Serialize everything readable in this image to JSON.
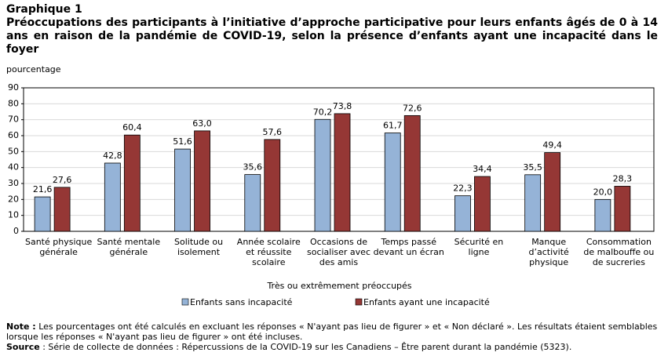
{
  "chart_data": {
    "type": "bar",
    "label": "Graphique 1",
    "title": "Préoccupations des participants à l’initiative d’approche participative pour leurs enfants âgés de 0 à 14 ans en raison de la pandémie de COVID-19, selon la présence d’enfants ayant une incapacité dans le foyer",
    "y_label": "pourcentage",
    "x_label": "Très ou extrêmement préoccupés",
    "categories": [
      "Santé physique générale",
      "Santé mentale générale",
      "Solitude ou isolement",
      "Année scolaire et réussite scolaire",
      "Occasions de socialiser avec des amis",
      "Temps passé devant un écran",
      "Sécurité en ligne",
      "Manque d’activité physique",
      "Consommation de malbouffe ou de sucreries"
    ],
    "series": [
      {
        "name": "Enfants sans incapacité",
        "color": "#95b3d7",
        "values": [
          21.6,
          42.8,
          51.6,
          35.6,
          70.2,
          61.7,
          22.3,
          35.5,
          20.0
        ],
        "value_labels": [
          "21,6",
          "42,8",
          "51,6",
          "35,6",
          "70,2",
          "61,7",
          "22,3",
          "35,5",
          "20,0"
        ]
      },
      {
        "name": "Enfants ayant une incapacité",
        "color": "#953735",
        "values": [
          27.6,
          60.4,
          63.0,
          57.6,
          73.8,
          72.6,
          34.4,
          49.4,
          28.3
        ],
        "value_labels": [
          "27,6",
          "60,4",
          "63,0",
          "57,6",
          "73,8",
          "72,6",
          "34,4",
          "49,4",
          "28,3"
        ]
      }
    ],
    "ylim": [
      0,
      90
    ],
    "yticks": [
      0,
      10,
      20,
      30,
      40,
      50,
      60,
      70,
      80,
      90
    ],
    "grid": true,
    "note_label": "Note :",
    "note_text": " Les pourcentages ont été calculés en excluant les réponses « N'ayant pas lieu de figurer » et « Non déclaré ». Les résultats étaient semblables lorsque les réponses « N'ayant pas lieu de  figurer » ont été incluses.",
    "source_label": "Source",
    "source_text": " : Série de collecte de données : Répercussions de la COVID-19 sur les Canadiens – Être parent durant la pandémie (5323)."
  }
}
